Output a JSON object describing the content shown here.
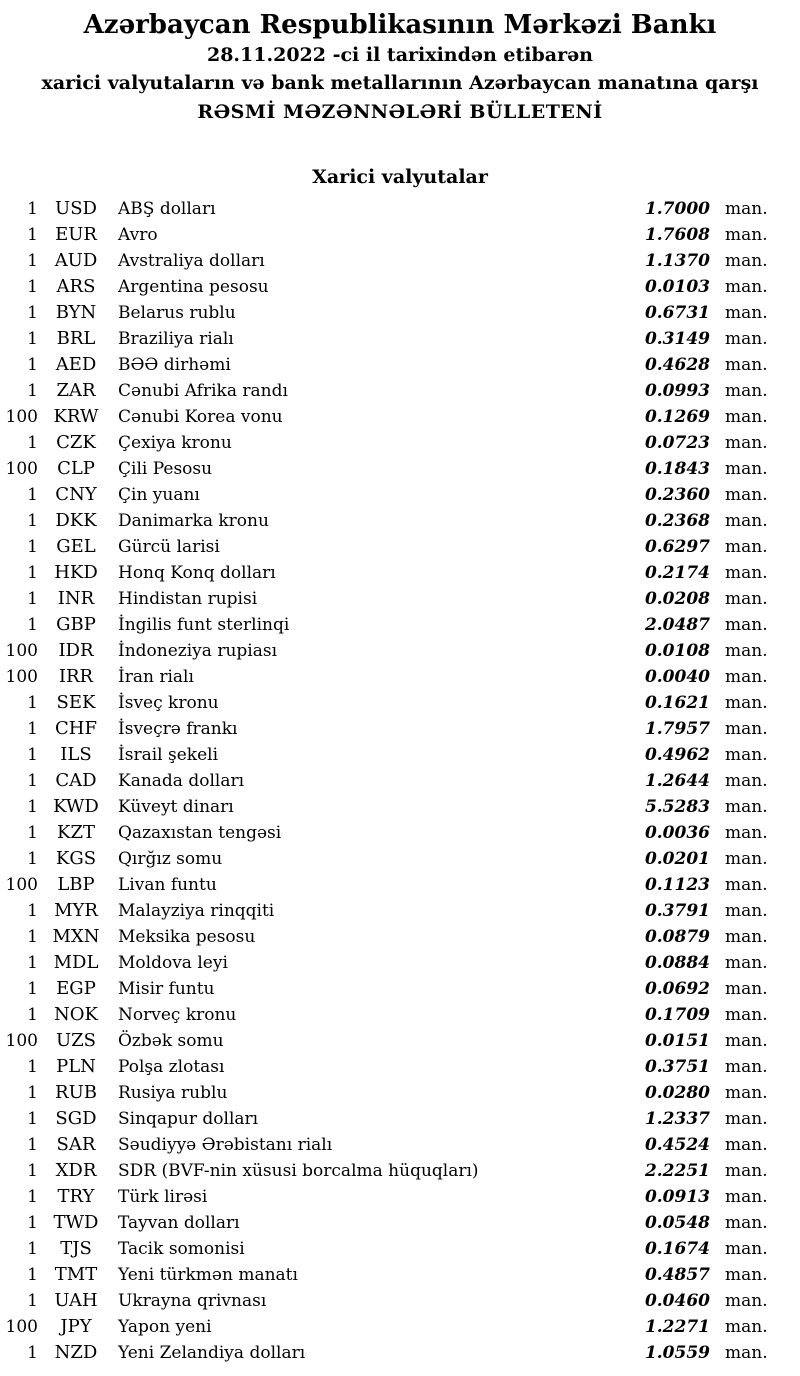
{
  "header": {
    "bank_name": "Azərbaycan Respublikasının Mərkəzi Bankı",
    "date_line": "28.11.2022 -ci il tarixindən etibarən",
    "subject_line": "xarici valyutaların və bank metallarının Azərbaycan manatına qarşı",
    "bulletin_line": "RƏSMİ MƏZƏNNƏLƏRİ BÜLLETENİ"
  },
  "section": {
    "title": "Xarici valyutalar"
  },
  "table": {
    "unit_label": "man.",
    "rows": [
      {
        "qty": "1",
        "code": "USD",
        "name": "ABŞ dolları",
        "rate": "1.7000"
      },
      {
        "qty": "1",
        "code": "EUR",
        "name": "Avro",
        "rate": "1.7608"
      },
      {
        "qty": "1",
        "code": "AUD",
        "name": "Avstraliya dolları",
        "rate": "1.1370"
      },
      {
        "qty": "1",
        "code": "ARS",
        "name": "Argentina pesosu",
        "rate": "0.0103"
      },
      {
        "qty": "1",
        "code": "BYN",
        "name": "Belarus rublu",
        "rate": "0.6731"
      },
      {
        "qty": "1",
        "code": "BRL",
        "name": "Braziliya rialı",
        "rate": "0.3149"
      },
      {
        "qty": "1",
        "code": "AED",
        "name": "BƏƏ dirhəmi",
        "rate": "0.4628"
      },
      {
        "qty": "1",
        "code": "ZAR",
        "name": "Cənubi Afrika randı",
        "rate": "0.0993"
      },
      {
        "qty": "100",
        "code": "KRW",
        "name": "Cənubi Korea vonu",
        "rate": "0.1269"
      },
      {
        "qty": "1",
        "code": "CZK",
        "name": "Çexiya kronu",
        "rate": "0.0723"
      },
      {
        "qty": "100",
        "code": "CLP",
        "name": "Çili Pesosu",
        "rate": "0.1843"
      },
      {
        "qty": "1",
        "code": "CNY",
        "name": "Çin yuanı",
        "rate": "0.2360"
      },
      {
        "qty": "1",
        "code": "DKK",
        "name": "Danimarka kronu",
        "rate": "0.2368"
      },
      {
        "qty": "1",
        "code": "GEL",
        "name": "Gürcü larisi",
        "rate": "0.6297"
      },
      {
        "qty": "1",
        "code": "HKD",
        "name": "Honq Konq dolları",
        "rate": "0.2174"
      },
      {
        "qty": "1",
        "code": "INR",
        "name": "Hindistan rupisi",
        "rate": "0.0208"
      },
      {
        "qty": "1",
        "code": "GBP",
        "name": "İngilis funt sterlinqi",
        "rate": "2.0487"
      },
      {
        "qty": "100",
        "code": "IDR",
        "name": "İndoneziya rupiası",
        "rate": "0.0108"
      },
      {
        "qty": "100",
        "code": "IRR",
        "name": "İran rialı",
        "rate": "0.0040"
      },
      {
        "qty": "1",
        "code": "SEK",
        "name": "İsveç kronu",
        "rate": "0.1621"
      },
      {
        "qty": "1",
        "code": "CHF",
        "name": "İsveçrə frankı",
        "rate": "1.7957"
      },
      {
        "qty": "1",
        "code": "ILS",
        "name": "İsrail şekeli",
        "rate": "0.4962"
      },
      {
        "qty": "1",
        "code": "CAD",
        "name": "Kanada dolları",
        "rate": "1.2644"
      },
      {
        "qty": "1",
        "code": "KWD",
        "name": "Küveyt dinarı",
        "rate": "5.5283"
      },
      {
        "qty": "1",
        "code": "KZT",
        "name": "Qazaxıstan tengəsi",
        "rate": "0.0036"
      },
      {
        "qty": "1",
        "code": "KGS",
        "name": "Qırğız somu",
        "rate": "0.0201"
      },
      {
        "qty": "100",
        "code": "LBP",
        "name": "Livan funtu",
        "rate": "0.1123"
      },
      {
        "qty": "1",
        "code": "MYR",
        "name": "Malayziya rinqqiti",
        "rate": "0.3791"
      },
      {
        "qty": "1",
        "code": "MXN",
        "name": "Meksika pesosu",
        "rate": "0.0879"
      },
      {
        "qty": "1",
        "code": "MDL",
        "name": "Moldova leyi",
        "rate": "0.0884"
      },
      {
        "qty": "1",
        "code": "EGP",
        "name": "Misir funtu",
        "rate": "0.0692"
      },
      {
        "qty": "1",
        "code": "NOK",
        "name": "Norveç kronu",
        "rate": "0.1709"
      },
      {
        "qty": "100",
        "code": "UZS",
        "name": "Özbək somu",
        "rate": "0.0151"
      },
      {
        "qty": "1",
        "code": "PLN",
        "name": "Polşa zlotası",
        "rate": "0.3751"
      },
      {
        "qty": "1",
        "code": "RUB",
        "name": "Rusiya rublu",
        "rate": "0.0280"
      },
      {
        "qty": "1",
        "code": "SGD",
        "name": "Sinqapur dolları",
        "rate": "1.2337"
      },
      {
        "qty": "1",
        "code": "SAR",
        "name": "Səudiyyə Ərəbistanı rialı",
        "rate": "0.4524"
      },
      {
        "qty": "1",
        "code": "XDR",
        "name": "SDR (BVF-nin xüsusi borcalma hüquqları)",
        "rate": "2.2251"
      },
      {
        "qty": "1",
        "code": "TRY",
        "name": "Türk lirəsi",
        "rate": "0.0913"
      },
      {
        "qty": "1",
        "code": "TWD",
        "name": "Tayvan dolları",
        "rate": "0.0548"
      },
      {
        "qty": "1",
        "code": "TJS",
        "name": "Tacik somonisi",
        "rate": "0.1674"
      },
      {
        "qty": "1",
        "code": "TMT",
        "name": "Yeni türkmən manatı",
        "rate": "0.4857"
      },
      {
        "qty": "1",
        "code": "UAH",
        "name": "Ukrayna qrivnası",
        "rate": "0.0460"
      },
      {
        "qty": "100",
        "code": "JPY",
        "name": "Yapon yeni",
        "rate": "1.2271"
      },
      {
        "qty": "1",
        "code": "NZD",
        "name": "Yeni Zelandiya dolları",
        "rate": "1.0559"
      }
    ]
  }
}
